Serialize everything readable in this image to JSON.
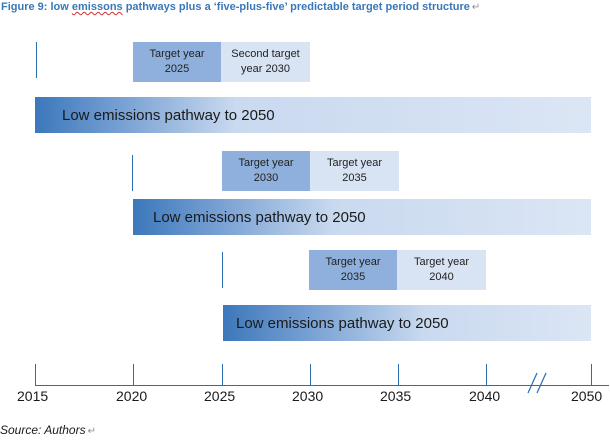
{
  "figure": {
    "title_prefix": "Figure 9: low ",
    "title_misspelled": "emissons",
    "title_suffix": " pathways plus a ‘five-plus-five’ predictable target period structure",
    "paragraph_mark": "↵"
  },
  "rows": [
    {
      "target_a": {
        "line1": "Target year",
        "line2": "2025"
      },
      "target_b": {
        "line1": "Second target",
        "line2": "year 2030"
      },
      "pathway_label": "Low emissions pathway to 2050"
    },
    {
      "target_a": {
        "line1": "Target year",
        "line2": "2030"
      },
      "target_b": {
        "line1": "Target year",
        "line2": "2035"
      },
      "pathway_label": "Low emissions pathway to 2050"
    },
    {
      "target_a": {
        "line1": "Target year",
        "line2": "2035"
      },
      "target_b": {
        "line1": "Target year",
        "line2": "2040"
      },
      "pathway_label": "Low emissions pathway to 2050"
    }
  ],
  "axis": {
    "ticks": [
      "2015",
      "2020",
      "2025",
      "2030",
      "2035",
      "2040",
      "2050"
    ],
    "axis_break": true
  },
  "source": {
    "text": "Source: Authors",
    "paragraph_mark": "↵"
  },
  "colors": {
    "target_dark": "#8fb0dc",
    "target_light": "#d8e4f4",
    "pathway_start": "#3c78bb",
    "pathway_end": "#dbe6f5",
    "axis": "#2a6db0",
    "title": "#3a77b8"
  }
}
